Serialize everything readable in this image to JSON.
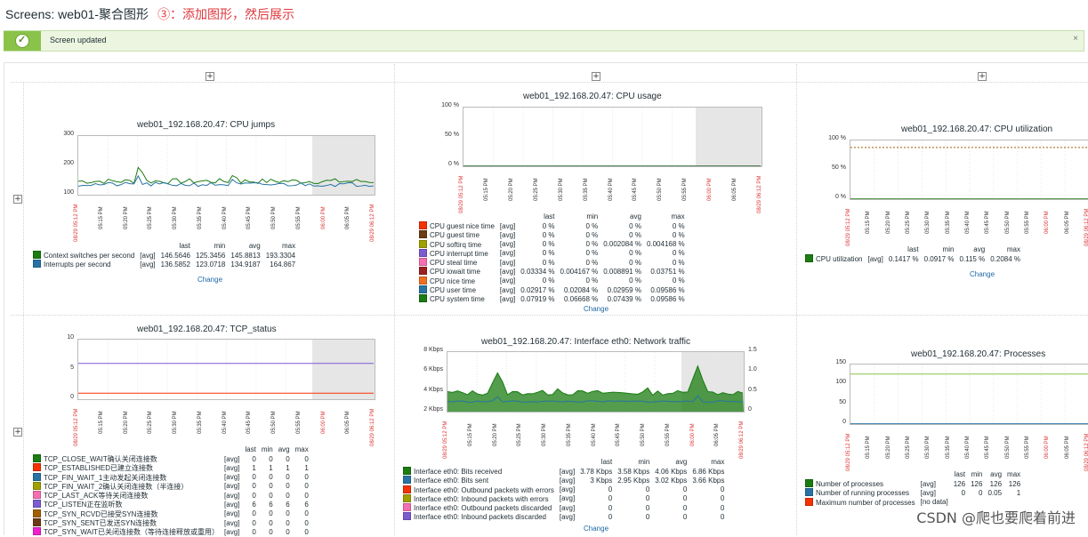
{
  "header": {
    "title": "Screens: web01-聚合图形",
    "annotation": "③：添加图形，然后展示"
  },
  "message": {
    "text": "Screen updated",
    "close": "×"
  },
  "add_button": "+",
  "xaxis": {
    "start": "08/29 05:12 PM",
    "ticks": [
      "05:15 PM",
      "05:20 PM",
      "05:25 PM",
      "05:30 PM",
      "05:35 PM",
      "05:40 PM",
      "05:45 PM",
      "05:50 PM",
      "05:55 PM",
      "06:00 PM",
      "06:05 PM"
    ],
    "end": "08/29 06:12 PM",
    "red_tick": "06:00 PM"
  },
  "legend_headers": {
    "last": "last",
    "min": "min",
    "avg": "avg",
    "max": "max"
  },
  "change_label": "Change",
  "graphs": {
    "cpu_jumps": {
      "title": "web01_192.168.20.47: CPU jumps",
      "yticks": [
        "300",
        "200",
        "100"
      ],
      "items": [
        {
          "name": "Context switches per second",
          "fn": "[avg]",
          "last": "146.5646",
          "min": "125.3456",
          "avg": "145.8813",
          "max": "193.3304",
          "color": "#1a7c11"
        },
        {
          "name": "Interrupts per second",
          "fn": "[avg]",
          "last": "136.5852",
          "min": "123.0718",
          "avg": "134.9187",
          "max": "164.867",
          "color": "#2774a4"
        }
      ]
    },
    "cpu_usage": {
      "title": "web01_192.168.20.47: CPU usage",
      "yticks": [
        "100 %",
        "50 %",
        "0 %"
      ],
      "items": [
        {
          "name": "CPU guest nice time",
          "fn": "[avg]",
          "last": "0 %",
          "min": "0 %",
          "avg": "0 %",
          "max": "0 %",
          "color": "#f63100"
        },
        {
          "name": "CPU guest time",
          "fn": "[avg]",
          "last": "0 %",
          "min": "0 %",
          "avg": "0 %",
          "max": "0 %",
          "color": "#6c3b13"
        },
        {
          "name": "CPU softirq time",
          "fn": "[avg]",
          "last": "0 %",
          "min": "0 %",
          "avg": "0.002084 %",
          "max": "0.004168 %",
          "color": "#a0a000"
        },
        {
          "name": "CPU interrupt time",
          "fn": "[avg]",
          "last": "0 %",
          "min": "0 %",
          "avg": "0 %",
          "max": "0 %",
          "color": "#7c5cd0"
        },
        {
          "name": "CPU steal time",
          "fn": "[avg]",
          "last": "0 %",
          "min": "0 %",
          "avg": "0 %",
          "max": "0 %",
          "color": "#f66fb0"
        },
        {
          "name": "CPU iowait time",
          "fn": "[avg]",
          "last": "0.03334 %",
          "min": "0.004167 %",
          "avg": "0.008891 %",
          "max": "0.03751 %",
          "color": "#9c2020"
        },
        {
          "name": "CPU nice time",
          "fn": "[avg]",
          "last": "0 %",
          "min": "0 %",
          "avg": "0 %",
          "max": "0 %",
          "color": "#f07020"
        },
        {
          "name": "CPU user time",
          "fn": "[avg]",
          "last": "0.02917 %",
          "min": "0.02084 %",
          "avg": "0.02959 %",
          "max": "0.09586 %",
          "color": "#2774a4"
        },
        {
          "name": "CPU system time",
          "fn": "[avg]",
          "last": "0.07919 %",
          "min": "0.06668 %",
          "avg": "0.07439 %",
          "max": "0.09586 %",
          "color": "#1a7c11"
        }
      ]
    },
    "cpu_util": {
      "title": "web01_192.168.20.47: CPU utilization",
      "yticks": [
        "100 %",
        "50 %",
        "0 %"
      ],
      "items": [
        {
          "name": "CPU utilization",
          "fn": "[avg]",
          "last": "0.1417 %",
          "min": "0.0917 %",
          "avg": "0.115 %",
          "max": "0.2084 %",
          "color": "#1a7c11"
        }
      ]
    },
    "tcp_status": {
      "title": "web01_192.168.20.47: TCP_status",
      "yticks": [
        "10",
        "5",
        "0"
      ],
      "items": [
        {
          "name": "TCP_CLOSE_WAIT确认关闭连接数",
          "fn": "[avg]",
          "last": "0",
          "min": "0",
          "avg": "0",
          "max": "0",
          "color": "#1a7c11"
        },
        {
          "name": "TCP_ESTABLISHED已建立连接数",
          "fn": "[avg]",
          "last": "1",
          "min": "1",
          "avg": "1",
          "max": "1",
          "color": "#f63100"
        },
        {
          "name": "TCP_FIN_WAIT_1主动发起关闭连接数",
          "fn": "[avg]",
          "last": "0",
          "min": "0",
          "avg": "0",
          "max": "0",
          "color": "#2774a4"
        },
        {
          "name": "TCP_FIN_WAIT_2确认关闭连接数（半连接）",
          "fn": "[avg]",
          "last": "0",
          "min": "0",
          "avg": "0",
          "max": "0",
          "color": "#a0a000"
        },
        {
          "name": "TCP_LAST_ACK等待关闭连接数",
          "fn": "[avg]",
          "last": "0",
          "min": "0",
          "avg": "0",
          "max": "0",
          "color": "#f66fb0"
        },
        {
          "name": "TCP_LISTEN正在监听数",
          "fn": "[avg]",
          "last": "6",
          "min": "6",
          "avg": "6",
          "max": "6",
          "color": "#7c5cd0"
        },
        {
          "name": "TCP_SYN_RCVD已接受SYN连接数",
          "fn": "[avg]",
          "last": "0",
          "min": "0",
          "avg": "0",
          "max": "0",
          "color": "#a06000"
        },
        {
          "name": "TCP_SYN_SENT已发送SYN连接数",
          "fn": "[avg]",
          "last": "0",
          "min": "0",
          "avg": "0",
          "max": "0",
          "color": "#6c3b13"
        },
        {
          "name": "TCP_SYN_WAIT已关闭连接数（等待连接释放或重用）",
          "fn": "[avg]",
          "last": "0",
          "min": "0",
          "avg": "0",
          "max": "0",
          "color": "#f020d0"
        }
      ]
    },
    "net_traffic": {
      "title": "web01_192.168.20.47: Interface eth0: Network traffic",
      "yticks": [
        "8 Kbps",
        "6 Kbps",
        "4 Kbps",
        "2 Kbps"
      ],
      "yticks_right": [
        "1.5",
        "1.0",
        "0.5",
        "0"
      ],
      "items": [
        {
          "name": "Interface eth0: Bits received",
          "fn": "[avg]",
          "last": "3.78 Kbps",
          "min": "3.58 Kbps",
          "avg": "4.06 Kbps",
          "max": "6.86 Kbps",
          "color": "#1a7c11"
        },
        {
          "name": "Interface eth0: Bits sent",
          "fn": "[avg]",
          "last": "3 Kbps",
          "min": "2.95 Kbps",
          "avg": "3.02 Kbps",
          "max": "3.66 Kbps",
          "color": "#2774a4"
        },
        {
          "name": "Interface eth0: Outbound packets with errors",
          "fn": "[avg]",
          "last": "0",
          "min": "0",
          "avg": "0",
          "max": "0",
          "color": "#f63100"
        },
        {
          "name": "Interface eth0: Inbound packets with errors",
          "fn": "[avg]",
          "last": "0",
          "min": "0",
          "avg": "0",
          "max": "0",
          "color": "#a0a000"
        },
        {
          "name": "Interface eth0: Outbound packets discarded",
          "fn": "[avg]",
          "last": "0",
          "min": "0",
          "avg": "0",
          "max": "0",
          "color": "#f66fb0"
        },
        {
          "name": "Interface eth0: Inbound packets discarded",
          "fn": "[avg]",
          "last": "0",
          "min": "0",
          "avg": "0",
          "max": "0",
          "color": "#7c5cd0"
        }
      ]
    },
    "processes": {
      "title": "web01_192.168.20.47: Processes",
      "yticks": [
        "150",
        "100",
        "50",
        "0"
      ],
      "items": [
        {
          "name": "Number of processes",
          "fn": "[avg]",
          "last": "126",
          "min": "126",
          "avg": "126",
          "max": "126",
          "color": "#1a7c11"
        },
        {
          "name": "Number of running processes",
          "fn": "[avg]",
          "last": "0",
          "min": "0",
          "avg": "0.05",
          "max": "1",
          "color": "#2774a4"
        },
        {
          "name": "Maximum number of processes",
          "fn": "[no data]",
          "last": "",
          "min": "",
          "avg": "",
          "max": "",
          "color": "#f63100"
        }
      ]
    }
  },
  "watermark": "CSDN @爬也要爬着前进"
}
